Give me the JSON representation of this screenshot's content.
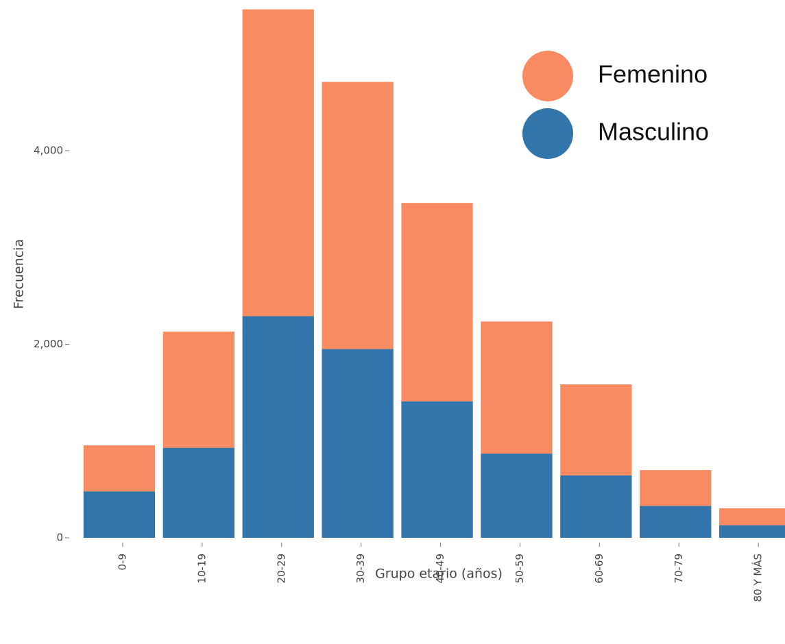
{
  "chart_data": {
    "type": "bar",
    "stacked": true,
    "xlabel": "Grupo etario (años)",
    "ylabel": "Frecuencia",
    "categories": [
      "0-9",
      "10-19",
      "20-29",
      "30-39",
      "40-49",
      "50-59",
      "60-69",
      "70-79",
      "80 Y MÁS"
    ],
    "series": [
      {
        "name": "Femenino",
        "color": "#f98b63",
        "values": [
          475,
          1200,
          3170,
          2760,
          2050,
          1365,
          940,
          370,
          175
        ]
      },
      {
        "name": "Masculino",
        "color": "#3275ab",
        "values": [
          480,
          930,
          2290,
          1950,
          1410,
          870,
          645,
          330,
          130
        ]
      }
    ],
    "ylim": [
      0,
      5500
    ],
    "yticks": [
      0,
      {
        "value": 2000,
        "label": "2,000"
      },
      {
        "value": 4000,
        "label": "4,000"
      }
    ],
    "legend": "upper right"
  }
}
